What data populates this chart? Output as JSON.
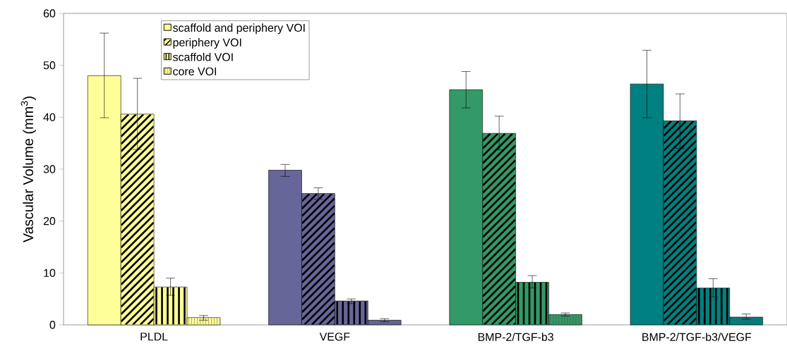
{
  "chart_data": {
    "type": "bar",
    "ylabel": "Vascular Volume (mm$^{3}$)",
    "categories": [
      "PLDL",
      "VEGF",
      "BMP-2/TGF-b3",
      "BMP-2/TGF-b3/VEGF"
    ],
    "series": [
      {
        "name": "scaffold and periphery VOI",
        "colors": [
          "#ffff99",
          "#666699",
          "#339966",
          "#008080"
        ],
        "values": [
          48.0,
          29.8,
          45.3,
          46.4
        ],
        "errors": [
          [
            39.9,
            56.2
          ],
          [
            28.6,
            30.9
          ],
          [
            41.8,
            48.8
          ],
          [
            39.9,
            52.9
          ]
        ]
      },
      {
        "name": "periphery VOI",
        "colors": [
          "#ffff99",
          "#666699",
          "#339966",
          "#008080"
        ],
        "values": [
          40.6,
          25.3,
          36.9,
          39.3
        ],
        "errors": [
          [
            33.8,
            47.5
          ],
          [
            24.2,
            26.4
          ],
          [
            33.7,
            40.2
          ],
          [
            34.0,
            44.5
          ]
        ]
      },
      {
        "name": "scaffold VOI",
        "colors": [
          "#ffff99",
          "#666699",
          "#339966",
          "#008080"
        ],
        "values": [
          7.3,
          4.6,
          8.2,
          7.1
        ],
        "errors": [
          [
            5.7,
            9.0
          ],
          [
            4.1,
            5.0
          ],
          [
            7.1,
            9.5
          ],
          [
            5.4,
            8.9
          ]
        ]
      },
      {
        "name": "core VOI",
        "colors": [
          "#ffff99",
          "#666699",
          "#339966",
          "#008080"
        ],
        "values": [
          1.4,
          0.9,
          2.0,
          1.5
        ],
        "errors": [
          [
            0.9,
            1.8
          ],
          [
            0.6,
            1.2
          ],
          [
            1.7,
            2.3
          ],
          [
            1.1,
            2.1
          ]
        ]
      }
    ],
    "ylim": [
      0,
      60
    ],
    "yticks": [
      0,
      10,
      20,
      30,
      40,
      50,
      60
    ],
    "grid": false,
    "legend": "top left"
  }
}
